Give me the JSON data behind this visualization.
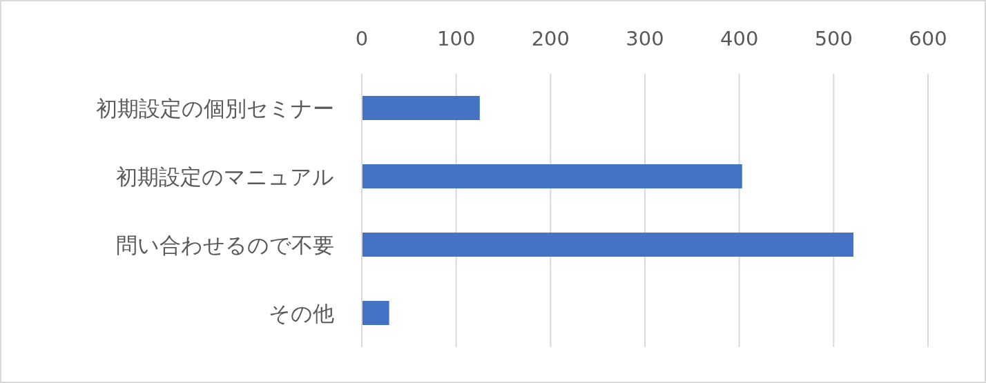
{
  "chart_data": {
    "type": "bar",
    "orientation": "horizontal",
    "categories": [
      "初期設定の個別セミナー",
      "初期設定のマニュアル",
      "問い合わせるので不要",
      "その他"
    ],
    "values": [
      125,
      403,
      521,
      29
    ],
    "color": "#4472c4",
    "xlim": [
      0,
      600
    ],
    "xticks": [
      0,
      100,
      200,
      300,
      400,
      500,
      600
    ],
    "grid": "x"
  }
}
